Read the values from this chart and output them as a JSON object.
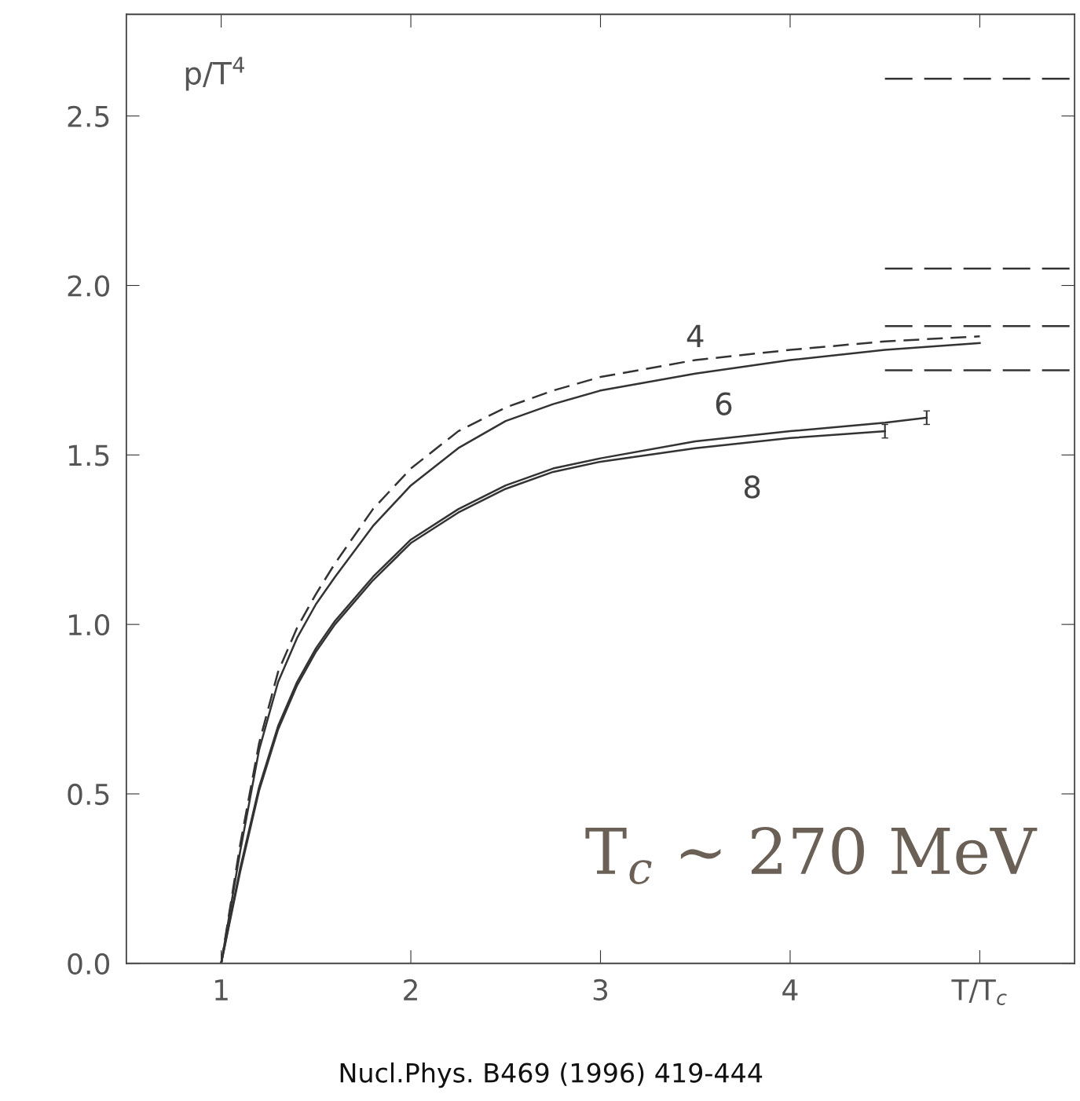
{
  "chart_data": {
    "type": "line",
    "ylabel": "p/T$^{4}$",
    "xlim": [
      0.5,
      5.5
    ],
    "ylim": [
      0.0,
      2.8
    ],
    "xticks": [
      1,
      2,
      3,
      4,
      {
        "value": 5,
        "label": "T/T$_{c}$"
      }
    ],
    "yticks": [
      {
        "value": 0,
        "label": "0.0"
      },
      0.5,
      {
        "value": 1,
        "label": "1.0"
      },
      1.5,
      {
        "value": 2,
        "label": "2.0"
      },
      2.5
    ],
    "grid": false,
    "legend": false,
    "marker": "none",
    "series": [
      {
        "color": "#333333",
        "line_style": "dashed",
        "x": [
          1.0,
          1.1,
          1.2,
          1.3,
          1.4,
          1.5,
          1.6,
          1.8,
          2.0,
          2.25,
          2.5,
          2.75,
          3.0,
          3.5,
          4.0,
          4.5,
          5.0
        ],
        "values": [
          0.0,
          0.35,
          0.65,
          0.86,
          0.99,
          1.09,
          1.18,
          1.34,
          1.46,
          1.57,
          1.64,
          1.69,
          1.73,
          1.78,
          1.81,
          1.835,
          1.85
        ]
      },
      {
        "name": "4",
        "color": "#333333",
        "line_style": "solid",
        "x": [
          1.0,
          1.1,
          1.2,
          1.3,
          1.4,
          1.5,
          1.6,
          1.8,
          2.0,
          2.25,
          2.5,
          2.75,
          3.0,
          3.5,
          4.0,
          4.5,
          5.0
        ],
        "values": [
          0.0,
          0.33,
          0.63,
          0.83,
          0.96,
          1.06,
          1.14,
          1.29,
          1.41,
          1.52,
          1.6,
          1.65,
          1.69,
          1.74,
          1.78,
          1.81,
          1.83
        ]
      },
      {
        "name": "6",
        "color": "#333333",
        "line_style": "solid",
        "x": [
          1.0,
          1.1,
          1.2,
          1.3,
          1.4,
          1.5,
          1.6,
          1.8,
          2.0,
          2.25,
          2.5,
          2.75,
          3.0,
          3.5,
          4.0,
          4.5,
          4.72
        ],
        "values": [
          0.0,
          0.28,
          0.52,
          0.7,
          0.83,
          0.93,
          1.01,
          1.14,
          1.25,
          1.34,
          1.41,
          1.46,
          1.49,
          1.54,
          1.57,
          1.595,
          1.61
        ],
        "errors": [
          null,
          null,
          null,
          null,
          null,
          null,
          null,
          null,
          null,
          null,
          null,
          null,
          null,
          null,
          null,
          null,
          0.02
        ]
      },
      {
        "name": "8",
        "color": "#333333",
        "line_style": "solid",
        "x": [
          1.0,
          1.1,
          1.2,
          1.3,
          1.4,
          1.5,
          1.6,
          1.8,
          2.0,
          2.25,
          2.5,
          2.75,
          3.0,
          3.5,
          4.0,
          4.5
        ],
        "values": [
          0.0,
          0.27,
          0.51,
          0.69,
          0.82,
          0.92,
          1.0,
          1.13,
          1.24,
          1.33,
          1.4,
          1.45,
          1.48,
          1.52,
          1.55,
          1.57
        ],
        "errors": [
          null,
          null,
          null,
          null,
          null,
          null,
          null,
          null,
          null,
          null,
          null,
          null,
          null,
          null,
          null,
          0.02
        ]
      },
      {
        "color": "#333333",
        "line_style": "dashed",
        "x": [
          4.5,
          5.5
        ],
        "values": [
          2.61,
          2.61
        ]
      },
      {
        "color": "#333333",
        "line_style": "dashed",
        "x": [
          4.5,
          5.5
        ],
        "values": [
          2.05,
          2.05
        ]
      },
      {
        "color": "#333333",
        "line_style": "dashed",
        "x": [
          4.5,
          5.5
        ],
        "values": [
          1.88,
          1.88
        ]
      },
      {
        "color": "#333333",
        "line_style": "dashed",
        "x": [
          4.5,
          5.5
        ],
        "values": [
          1.75,
          1.75
        ]
      }
    ],
    "annotations": [
      "T$_{c}$ ~ 270 MeV",
      "Nucl.Phys. B469 (1996) 419-444"
    ]
  }
}
